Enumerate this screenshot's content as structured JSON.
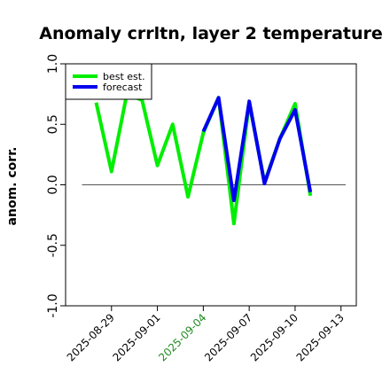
{
  "chart_data": {
    "type": "line",
    "title": "Anomaly crrltn, layer 2 temperature",
    "ylabel": "anom. corr.",
    "xlabel": "",
    "ylim": [
      -1.0,
      1.0
    ],
    "yticks": [
      -1.0,
      -0.5,
      0.0,
      0.5,
      1.0
    ],
    "ytick_labels": [
      "-1.0",
      "-0.5",
      "0.0",
      "0.5",
      "1.0"
    ],
    "xlim": [
      "2025-08-26",
      "2025-09-14"
    ],
    "xticks": [
      "2025-08-29",
      "2025-09-01",
      "2025-09-04",
      "2025-09-07",
      "2025-09-10",
      "2025-09-13"
    ],
    "xtick_colors": [
      "#000000",
      "#000000",
      "#228b22",
      "#000000",
      "#000000",
      "#000000"
    ],
    "zero_line": true,
    "grid": false,
    "legend_position": "top-left",
    "x": [
      "2025-08-28",
      "2025-08-29",
      "2025-08-30",
      "2025-08-31",
      "2025-09-01",
      "2025-09-02",
      "2025-09-03",
      "2025-09-04",
      "2025-09-05",
      "2025-09-06",
      "2025-09-07",
      "2025-09-08",
      "2025-09-09",
      "2025-09-10",
      "2025-09-11"
    ],
    "series": [
      {
        "name": "best est.",
        "color": "#00ee00",
        "values": [
          0.68,
          0.11,
          0.75,
          0.7,
          0.16,
          0.5,
          -0.1,
          0.43,
          0.72,
          -0.32,
          0.68,
          0.02,
          0.38,
          0.67,
          -0.09
        ]
      },
      {
        "name": "forecast",
        "color": "#0000ee",
        "values": [
          null,
          null,
          null,
          null,
          null,
          null,
          null,
          0.44,
          0.72,
          -0.13,
          0.69,
          0.01,
          0.38,
          0.62,
          -0.06
        ]
      }
    ]
  }
}
